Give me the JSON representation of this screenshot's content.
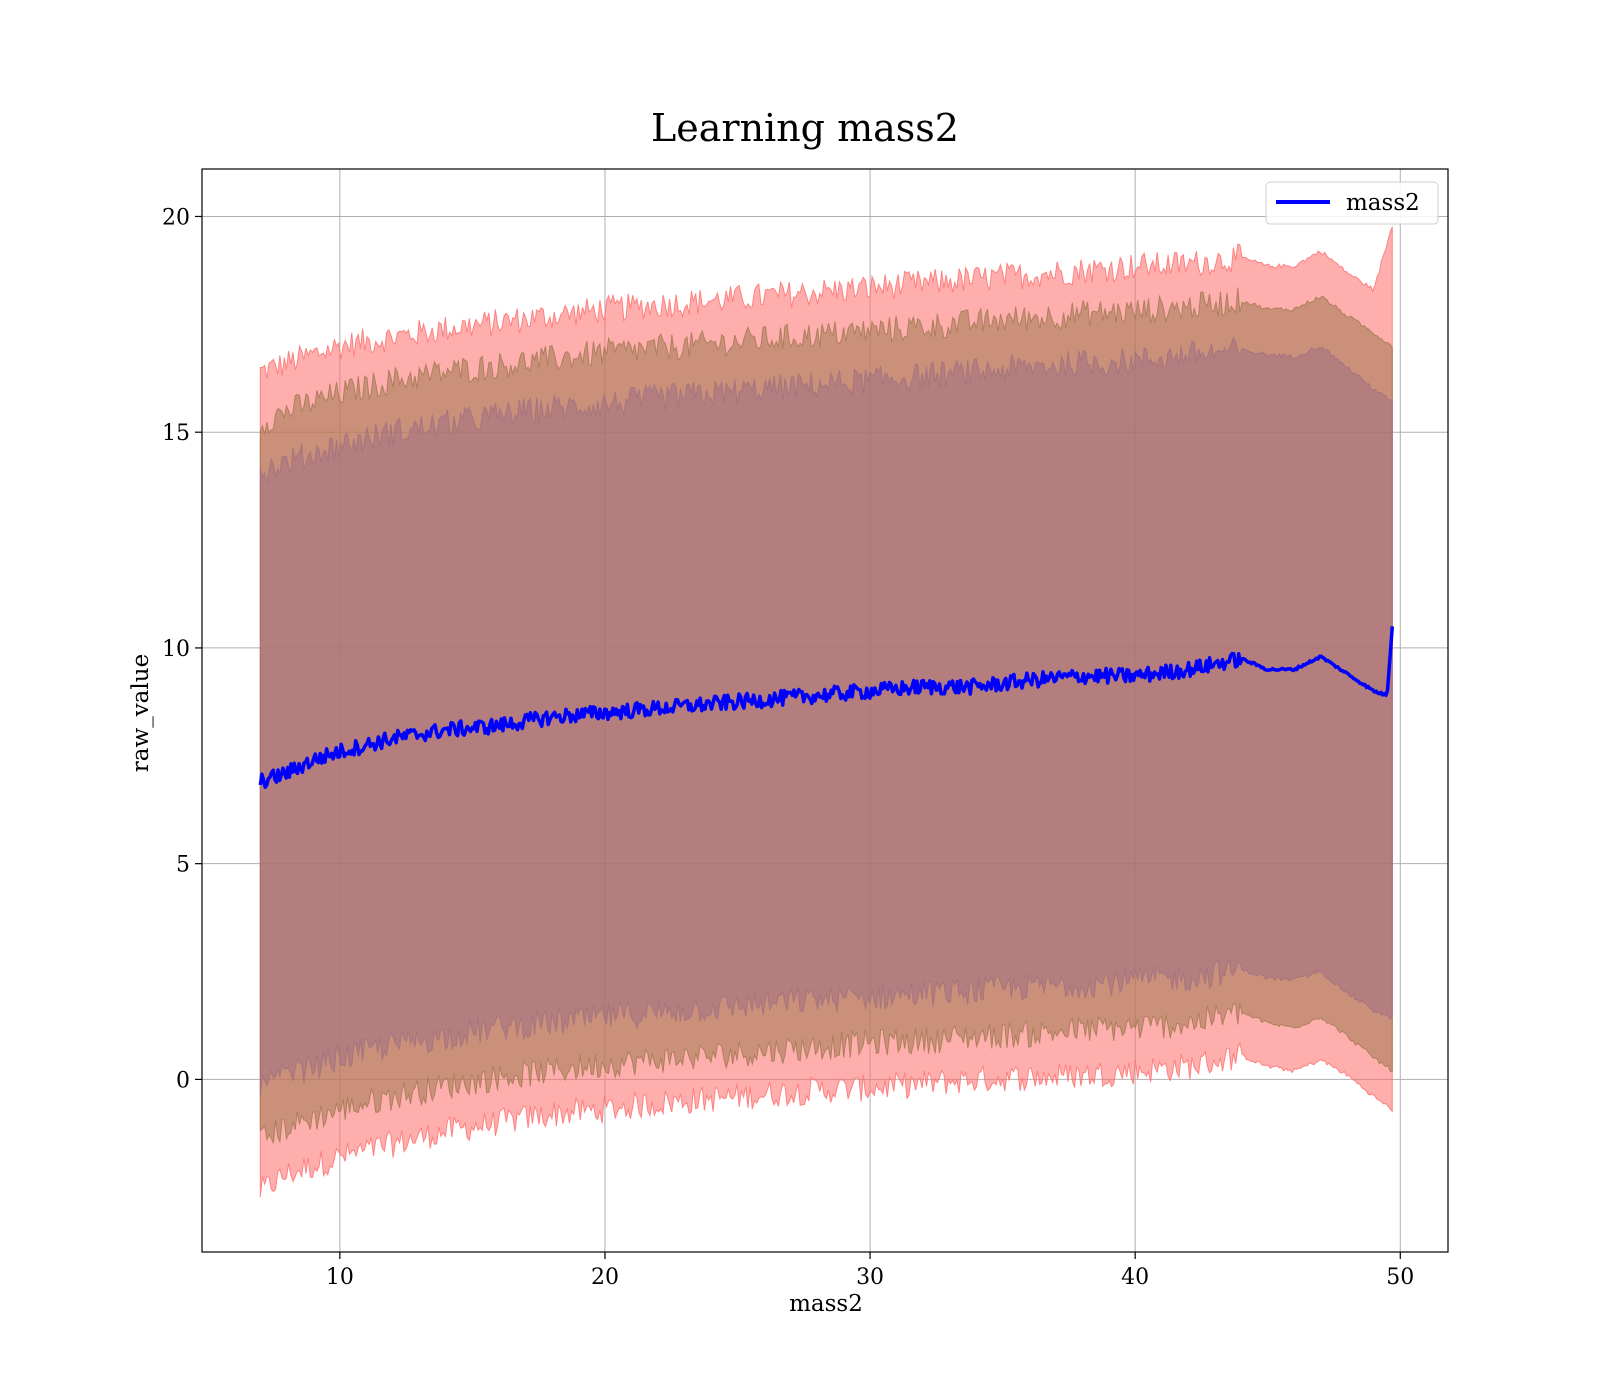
{
  "chart_data": {
    "type": "line",
    "title": "Learning mass2",
    "xlabel": "mass2",
    "ylabel": "raw_value",
    "xlim": [
      4.8,
      51.8
    ],
    "ylim": [
      -4.0,
      21.1
    ],
    "xticks": [
      10,
      20,
      30,
      40,
      50
    ],
    "yticks": [
      0,
      5,
      10,
      15,
      20
    ],
    "xtick_labels": [
      "10",
      "20",
      "30",
      "40",
      "50"
    ],
    "ytick_labels": [
      "0",
      "5",
      "10",
      "15",
      "20"
    ],
    "grid": true,
    "legend": {
      "position": "top-right",
      "entries": [
        "mass2"
      ]
    },
    "colors": {
      "line": "#0000ff",
      "band_outer": "#ff6b6b",
      "band_middle": "#a07850",
      "band_inner": "#a07080",
      "grid": "#b0b0b0"
    },
    "series": [
      {
        "name": "mass2",
        "x": [
          7.0,
          8,
          9,
          10,
          12,
          14,
          16,
          18,
          20,
          22,
          24,
          26,
          28,
          30,
          32,
          34,
          36,
          38,
          40,
          42,
          44,
          45,
          46,
          47,
          48,
          49,
          49.5,
          49.7
        ],
        "y": [
          6.9,
          7.1,
          7.4,
          7.6,
          7.9,
          8.1,
          8.2,
          8.4,
          8.5,
          8.6,
          8.7,
          8.8,
          8.9,
          9.0,
          9.1,
          9.1,
          9.25,
          9.35,
          9.35,
          9.5,
          9.75,
          9.5,
          9.5,
          9.8,
          9.4,
          9.0,
          8.9,
          10.5
        ]
      }
    ],
    "bands": [
      {
        "x": [
          7.0,
          8,
          10,
          12,
          14,
          16,
          18,
          20,
          22,
          24,
          26,
          28,
          30,
          32,
          34,
          36,
          38,
          40,
          42,
          44,
          45,
          46,
          47,
          48,
          49,
          49.7
        ],
        "lower": [
          -2.6,
          -2.2,
          -1.8,
          -1.5,
          -1.2,
          -1.0,
          -0.8,
          -0.7,
          -0.55,
          -0.45,
          -0.35,
          -0.25,
          -0.2,
          -0.1,
          0.0,
          0.05,
          0.1,
          0.2,
          0.3,
          0.55,
          0.3,
          0.2,
          0.45,
          0.1,
          -0.4,
          -0.7
        ],
        "upper": [
          16.4,
          16.6,
          17.0,
          17.2,
          17.4,
          17.55,
          17.7,
          17.85,
          17.95,
          18.05,
          18.15,
          18.25,
          18.35,
          18.45,
          18.55,
          18.65,
          18.75,
          18.85,
          18.9,
          19.05,
          18.85,
          18.85,
          19.2,
          18.7,
          18.3,
          19.8
        ]
      },
      {
        "x": [
          7.0,
          8,
          10,
          12,
          14,
          16,
          18,
          20,
          22,
          24,
          26,
          28,
          30,
          32,
          34,
          36,
          38,
          40,
          42,
          44,
          45,
          46,
          47,
          48,
          49,
          49.7
        ],
        "lower": [
          -1.4,
          -1.1,
          -0.7,
          -0.4,
          -0.15,
          0.05,
          0.2,
          0.35,
          0.45,
          0.55,
          0.65,
          0.75,
          0.85,
          0.9,
          1.0,
          1.05,
          1.15,
          1.2,
          1.3,
          1.55,
          1.3,
          1.2,
          1.45,
          1.0,
          0.5,
          0.2
        ],
        "upper": [
          15.2,
          15.5,
          15.9,
          16.2,
          16.4,
          16.55,
          16.7,
          16.85,
          16.95,
          17.05,
          17.15,
          17.25,
          17.35,
          17.45,
          17.55,
          17.65,
          17.75,
          17.8,
          17.9,
          18.05,
          17.85,
          17.85,
          18.15,
          17.7,
          17.3,
          17.0
        ]
      },
      {
        "x": [
          7.0,
          8,
          10,
          12,
          14,
          16,
          18,
          20,
          22,
          24,
          26,
          28,
          30,
          32,
          34,
          36,
          38,
          40,
          42,
          44,
          45,
          46,
          47,
          48,
          49,
          49.7
        ],
        "lower": [
          -0.2,
          0.1,
          0.5,
          0.8,
          1.0,
          1.2,
          1.3,
          1.45,
          1.55,
          1.65,
          1.75,
          1.85,
          1.9,
          2.0,
          2.05,
          2.15,
          2.2,
          2.3,
          2.35,
          2.55,
          2.35,
          2.3,
          2.5,
          2.0,
          1.6,
          1.4
        ],
        "upper": [
          14.1,
          14.3,
          14.7,
          15.0,
          15.2,
          15.4,
          15.55,
          15.65,
          15.8,
          15.9,
          16.0,
          16.1,
          16.2,
          16.3,
          16.4,
          16.5,
          16.6,
          16.65,
          16.8,
          16.9,
          16.8,
          16.75,
          17.0,
          16.5,
          16.0,
          15.7
        ]
      }
    ]
  }
}
